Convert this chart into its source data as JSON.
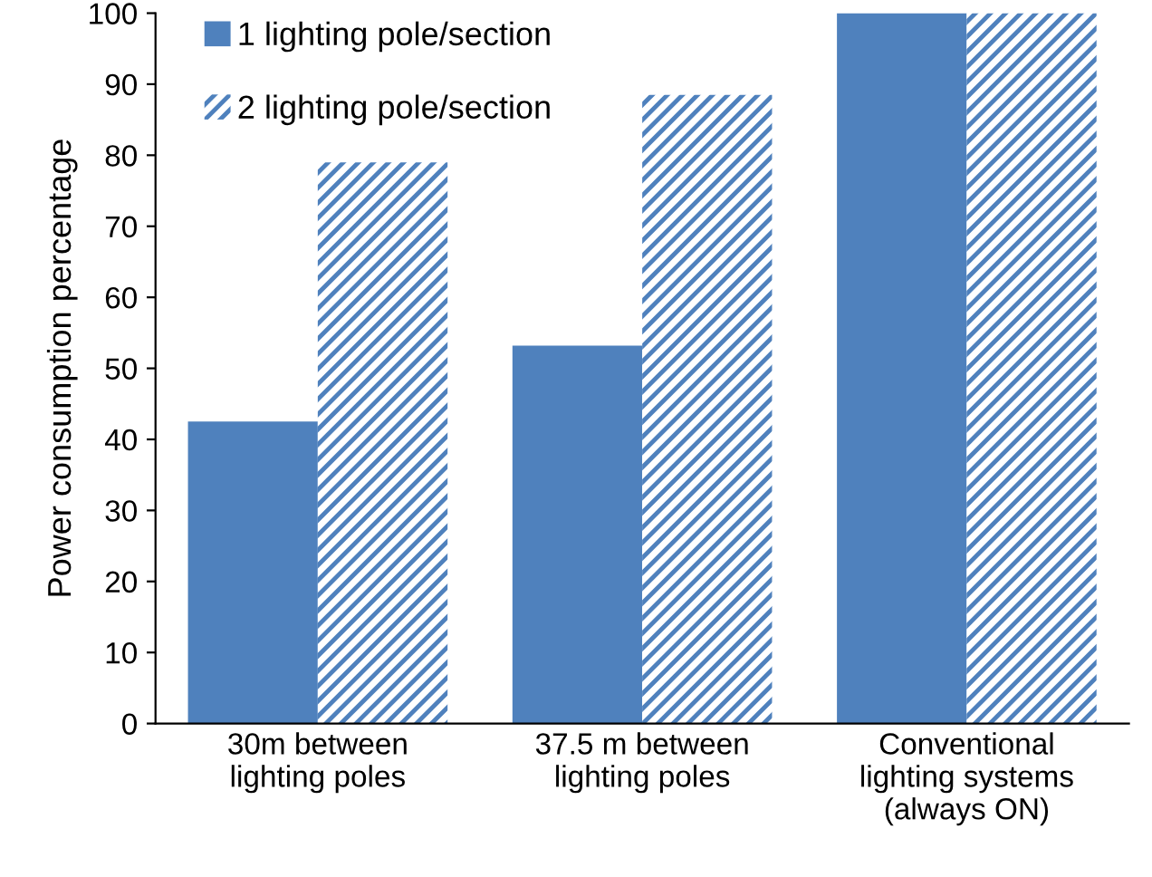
{
  "chart_data": {
    "type": "bar",
    "ylabel": "Power consumption percentage",
    "categories": [
      "30m between\nlighting poles",
      "37.5 m between\nlighting poles",
      "Conventional\nlighting systems\n(always ON)"
    ],
    "series": [
      {
        "name": "1 lighting pole/section",
        "color": "#4f81bd",
        "values": [
          42.5,
          53.2,
          100
        ]
      },
      {
        "name": "2 lighting pole/section",
        "color": "#4f81bd",
        "values": [
          79,
          88.5,
          100
        ]
      }
    ],
    "ylim": [
      0,
      100
    ],
    "yticks": [
      0,
      10,
      20,
      30,
      40,
      50,
      60,
      70,
      80,
      90,
      100
    ],
    "grid": false,
    "legend": "top left"
  }
}
